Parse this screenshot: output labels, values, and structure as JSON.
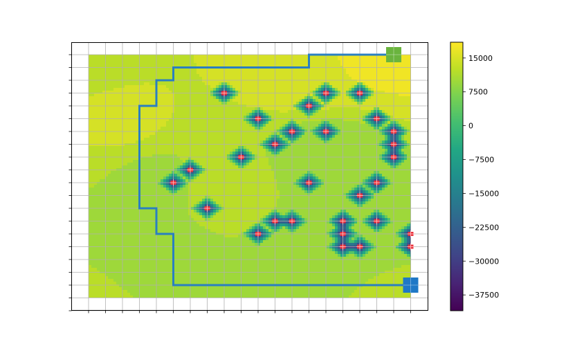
{
  "chart_data": {
    "type": "heatmap",
    "title": "",
    "xlabel": "",
    "ylabel": "",
    "grid": true,
    "x_tick_labels": false,
    "y_tick_labels": false,
    "grid_cols": 19,
    "grid_rows": 20,
    "base_field": [
      {
        "col": 0,
        "row": 0,
        "value": 12500
      },
      {
        "col": 18,
        "row": 0,
        "value": 16500
      },
      {
        "col": 13,
        "row": 1,
        "value": 16000
      },
      {
        "col": 2,
        "row": 5,
        "value": 14000
      },
      {
        "col": 4,
        "row": 10,
        "value": 10500
      },
      {
        "col": 3,
        "row": 16,
        "value": 9500
      },
      {
        "col": 0,
        "row": 19,
        "value": 12000
      },
      {
        "col": 10,
        "row": 19,
        "value": 11000
      },
      {
        "col": 18,
        "row": 19,
        "value": 11500
      },
      {
        "col": 8,
        "row": 10,
        "value": 12000
      },
      {
        "col": 14,
        "row": 8,
        "value": 9500
      },
      {
        "col": 15,
        "row": 15,
        "value": 9000
      }
    ],
    "obstacles": [
      {
        "col": 8,
        "row": 3,
        "depth": 38000
      },
      {
        "col": 14,
        "row": 3,
        "depth": 38000
      },
      {
        "col": 16,
        "row": 3,
        "depth": 38000
      },
      {
        "col": 13,
        "row": 4,
        "depth": 38000
      },
      {
        "col": 10,
        "row": 5,
        "depth": 38000
      },
      {
        "col": 17,
        "row": 5,
        "depth": 38000
      },
      {
        "col": 12,
        "row": 6,
        "depth": 38000
      },
      {
        "col": 14,
        "row": 6,
        "depth": 38000
      },
      {
        "col": 18,
        "row": 6,
        "depth": 40000
      },
      {
        "col": 11,
        "row": 7,
        "depth": 38000
      },
      {
        "col": 18,
        "row": 7,
        "depth": 40000
      },
      {
        "col": 18,
        "row": 8,
        "depth": 40000
      },
      {
        "col": 9,
        "row": 8,
        "depth": 38000
      },
      {
        "col": 6,
        "row": 9,
        "depth": 38000
      },
      {
        "col": 5,
        "row": 10,
        "depth": 38000
      },
      {
        "col": 13,
        "row": 10,
        "depth": 38000
      },
      {
        "col": 17,
        "row": 10,
        "depth": 38000
      },
      {
        "col": 16,
        "row": 11,
        "depth": 38000
      },
      {
        "col": 7,
        "row": 12,
        "depth": 38000
      },
      {
        "col": 11,
        "row": 13,
        "depth": 38000
      },
      {
        "col": 12,
        "row": 13,
        "depth": 38000
      },
      {
        "col": 15,
        "row": 13,
        "depth": 40000
      },
      {
        "col": 17,
        "row": 13,
        "depth": 38000
      },
      {
        "col": 10,
        "row": 14,
        "depth": 38000
      },
      {
        "col": 15,
        "row": 14,
        "depth": 40000
      },
      {
        "col": 19,
        "row": 14,
        "depth": 40000
      },
      {
        "col": 15,
        "row": 15,
        "depth": 40000
      },
      {
        "col": 16,
        "row": 15,
        "depth": 40000
      },
      {
        "col": 19,
        "row": 15,
        "depth": 40000
      }
    ],
    "path": [
      [
        18,
        0
      ],
      [
        13,
        0
      ],
      [
        13,
        1
      ],
      [
        5,
        1
      ],
      [
        5,
        2
      ],
      [
        4,
        2
      ],
      [
        4,
        4
      ],
      [
        3,
        4
      ],
      [
        3,
        12
      ],
      [
        4,
        12
      ],
      [
        4,
        14
      ],
      [
        5,
        14
      ],
      [
        5,
        18
      ],
      [
        19,
        18
      ]
    ],
    "start_marker": {
      "col": 18,
      "row": 0,
      "color": "#6ab43e"
    },
    "goal_marker": {
      "col": 19,
      "row": 18,
      "color": "#1f78c6"
    },
    "path_color": "#2a7fc1",
    "obstacle_marker_color": "#e8323c",
    "colorbar": {
      "vmin": -41000,
      "vmax": 18500,
      "ticks": [
        15000,
        7500,
        0,
        -7500,
        -15000,
        -22500,
        -30000,
        -37500
      ],
      "tick_labels": [
        "15000",
        "7500",
        "0",
        "−7500",
        "−15000",
        "−22500",
        "−30000",
        "−37500"
      ],
      "colormap": "viridis"
    }
  }
}
